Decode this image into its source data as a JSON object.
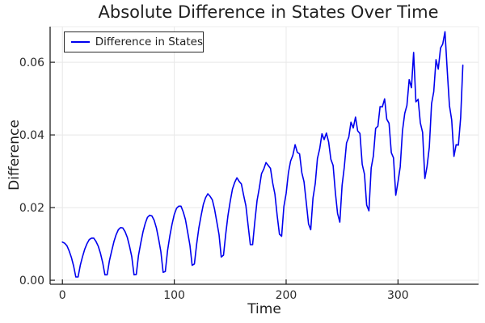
{
  "title": "Absolute Difference in States Over Time",
  "colors": {
    "line": "#0000ee",
    "grid": "#e8e8e8",
    "frame_light": "#ececec",
    "axis": "#1f1f1f",
    "tick_text": "#2b2b2b",
    "background": "#ffffff"
  },
  "chart_data": {
    "type": "line",
    "title": "Absolute Difference in States Over Time",
    "xlabel": "Time",
    "ylabel": "Difference",
    "xlim": [
      -11,
      372
    ],
    "ylim": [
      -0.0011,
      0.0698
    ],
    "grid": true,
    "legend_position": "top-left",
    "x_ticks": [
      0,
      100,
      200,
      300
    ],
    "x_tick_labels": [
      "0",
      "100",
      "200",
      "300"
    ],
    "y_ticks": [
      0.0,
      0.02,
      0.04,
      0.06
    ],
    "y_tick_labels": [
      "0.00",
      "0.02",
      "0.04",
      "0.06"
    ],
    "series": [
      {
        "name": "Difference in States",
        "color": "#0000ee",
        "x": [
          0,
          2,
          4,
          6,
          8,
          10,
          12,
          14,
          16,
          18,
          20,
          22,
          24,
          26,
          28,
          30,
          32,
          34,
          36,
          38,
          40,
          42,
          44,
          46,
          48,
          50,
          52,
          54,
          56,
          58,
          60,
          62,
          64,
          66,
          68,
          70,
          72,
          74,
          76,
          78,
          80,
          82,
          84,
          86,
          88,
          90,
          92,
          94,
          96,
          98,
          100,
          102,
          104,
          106,
          108,
          110,
          112,
          114,
          116,
          118,
          120,
          122,
          124,
          126,
          128,
          130,
          132,
          134,
          136,
          138,
          140,
          142,
          144,
          146,
          148,
          150,
          152,
          154,
          156,
          158,
          160,
          162,
          164,
          166,
          168,
          170,
          172,
          174,
          176,
          178,
          180,
          182,
          184,
          186,
          188,
          190,
          192,
          194,
          196,
          198,
          200,
          202,
          204,
          206,
          208,
          210,
          212,
          214,
          216,
          218,
          220,
          222,
          224,
          226,
          228,
          230,
          232,
          234,
          236,
          238,
          240,
          242,
          244,
          246,
          248,
          250,
          252,
          254,
          256,
          258,
          260,
          262,
          264,
          266,
          268,
          270,
          272,
          274,
          276,
          278,
          280,
          282,
          284,
          286,
          288,
          290,
          292,
          294,
          296,
          298,
          300,
          302,
          304,
          306,
          308,
          310,
          312,
          314,
          316,
          318,
          320,
          322,
          324,
          326,
          328,
          330,
          332,
          334,
          336,
          338,
          340,
          342,
          344,
          346,
          348,
          350,
          352,
          354,
          356,
          358
        ],
        "y": [
          0.0105,
          0.0102,
          0.0095,
          0.0081,
          0.0063,
          0.0039,
          0.0009,
          0.0009,
          0.0042,
          0.0065,
          0.0086,
          0.0101,
          0.0112,
          0.0116,
          0.0116,
          0.0107,
          0.0094,
          0.0074,
          0.0049,
          0.0015,
          0.0015,
          0.0053,
          0.008,
          0.0106,
          0.0125,
          0.0139,
          0.0145,
          0.0144,
          0.0134,
          0.0118,
          0.0093,
          0.0065,
          0.0015,
          0.0016,
          0.0068,
          0.0102,
          0.0133,
          0.0156,
          0.0173,
          0.0179,
          0.0177,
          0.0165,
          0.0144,
          0.0114,
          0.0079,
          0.0022,
          0.0024,
          0.0082,
          0.0122,
          0.0154,
          0.0181,
          0.0198,
          0.0204,
          0.0204,
          0.0188,
          0.0167,
          0.0132,
          0.0096,
          0.0041,
          0.0045,
          0.01,
          0.0144,
          0.0178,
          0.0209,
          0.0227,
          0.0238,
          0.0231,
          0.0221,
          0.0196,
          0.0161,
          0.0125,
          0.0064,
          0.0069,
          0.0128,
          0.0178,
          0.0217,
          0.0251,
          0.0269,
          0.0282,
          0.0272,
          0.0265,
          0.0234,
          0.0205,
          0.0152,
          0.0098,
          0.0098,
          0.016,
          0.0219,
          0.0254,
          0.0293,
          0.0306,
          0.0324,
          0.0316,
          0.0308,
          0.0267,
          0.0237,
          0.0178,
          0.0127,
          0.0121,
          0.0203,
          0.0239,
          0.0296,
          0.0328,
          0.0344,
          0.0373,
          0.0352,
          0.0348,
          0.0296,
          0.0271,
          0.0214,
          0.0155,
          0.0139,
          0.0226,
          0.0266,
          0.0335,
          0.0362,
          0.0403,
          0.0387,
          0.0405,
          0.038,
          0.0333,
          0.0316,
          0.0241,
          0.0184,
          0.016,
          0.0261,
          0.0311,
          0.0378,
          0.0394,
          0.0435,
          0.0419,
          0.0449,
          0.0411,
          0.0404,
          0.0319,
          0.0292,
          0.0207,
          0.0191,
          0.0309,
          0.0342,
          0.0418,
          0.0424,
          0.0478,
          0.0477,
          0.0499,
          0.0443,
          0.0432,
          0.0351,
          0.0337,
          0.0234,
          0.0271,
          0.0312,
          0.0411,
          0.0459,
          0.0481,
          0.0552,
          0.053,
          0.0627,
          0.0491,
          0.0498,
          0.0433,
          0.0407,
          0.028,
          0.0313,
          0.0366,
          0.0486,
          0.0519,
          0.0607,
          0.0581,
          0.0639,
          0.065,
          0.0684,
          0.0577,
          0.0481,
          0.0441,
          0.0341,
          0.0373,
          0.0372,
          0.0448,
          0.0592
        ]
      }
    ]
  }
}
